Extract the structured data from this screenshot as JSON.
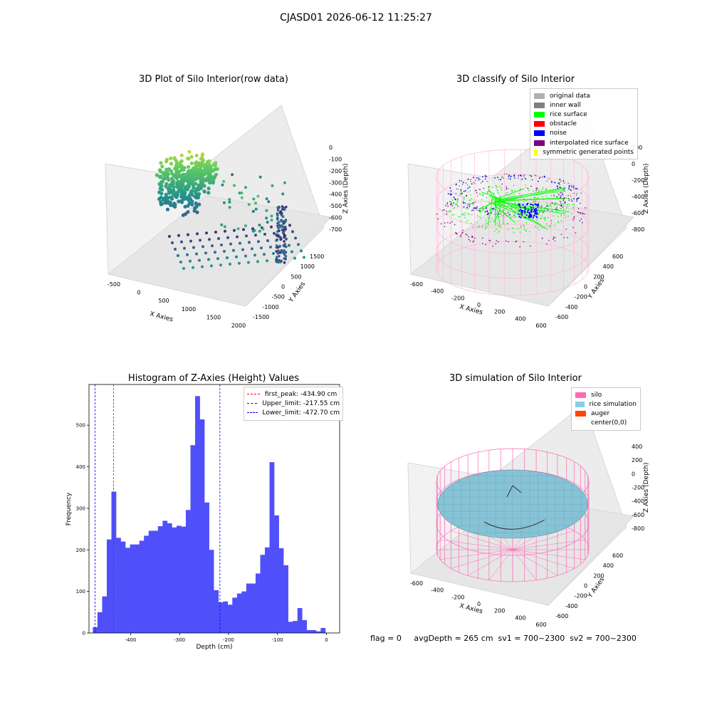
{
  "figure": {
    "suptitle": "CJASD01 2026-06-12 11:25:27",
    "footer": "flag = 0     avgDepth = 265 cm  sv1 = 700~2300  sv2 = 700~2300"
  },
  "chart_data": [
    {
      "type": "scatter",
      "projection": "3d",
      "title": "3D Plot of Silo Interior(row data)",
      "xlabel": "X Axies",
      "ylabel": "Y Axies",
      "zlabel": "Z Axies (Depth)",
      "xticks": [
        "-500",
        "0",
        "500",
        "1000",
        "1500",
        "2000"
      ],
      "yticks": [
        "-1500",
        "-1000",
        "-500",
        "0",
        "500",
        "1000",
        "1500"
      ],
      "zticks": [
        "0",
        "-100",
        "-200",
        "-300",
        "-400",
        "-500",
        "-600",
        "-700"
      ],
      "colormap": "viridis"
    },
    {
      "type": "scatter",
      "projection": "3d",
      "title": "3D classify of Silo Interior",
      "xlabel": "X Axies",
      "ylabel": "Y Axies",
      "zlabel": "Z Axies (Depth)",
      "xticks": [
        "-600",
        "-400",
        "-200",
        "0",
        "200",
        "400",
        "600"
      ],
      "yticks": [
        "-600",
        "-400",
        "-200",
        "0",
        "200",
        "400",
        "600"
      ],
      "zticks": [
        "200",
        "0",
        "-200",
        "-400",
        "-600",
        "-800"
      ],
      "legend": [
        {
          "label": "original data",
          "color": "#b0b0b0"
        },
        {
          "label": "inner wall",
          "color": "#808080"
        },
        {
          "label": "rice surface",
          "color": "#00ff00"
        },
        {
          "label": "obstacle",
          "color": "#ff0000"
        },
        {
          "label": "noise",
          "color": "#0000ff"
        },
        {
          "label": "interpolated rice surface",
          "color": "#800080"
        },
        {
          "label": "symmetric generated points",
          "color": "#ffff00"
        }
      ],
      "legend_loc": "top-right"
    },
    {
      "type": "bar",
      "title": "Histogram of Z-Axies (Height) Values",
      "xlabel": "Depth (cm)",
      "ylabel": "Frequency",
      "bar_color": "#5050fa",
      "bin_width": 9.5,
      "bin_starts": [
        -477.2,
        -467.7,
        -458.2,
        -448.7,
        -439.2,
        -429.7,
        -420.2,
        -410.7,
        -401.2,
        -391.7,
        -382.2,
        -372.7,
        -363.2,
        -353.7,
        -344.2,
        -334.7,
        -325.2,
        -315.7,
        -306.2,
        -296.7,
        -287.2,
        -277.7,
        -268.2,
        -258.7,
        -249.2,
        -239.7,
        -230.2,
        -220.7,
        -211.2,
        -201.7,
        -192.2,
        -182.7,
        -173.2,
        -163.7,
        -154.2,
        -144.7,
        -135.2,
        -125.7,
        -116.2,
        -106.7,
        -97.2,
        -87.7,
        -78.2,
        -68.7,
        -59.2,
        -49.7,
        -40.2,
        -30.7,
        -21.2,
        -11.7,
        -2.2
      ],
      "values": [
        14,
        50,
        88,
        225,
        340,
        229,
        220,
        205,
        213,
        213,
        222,
        234,
        246,
        246,
        257,
        270,
        264,
        254,
        258,
        256,
        296,
        452,
        570,
        514,
        314,
        200,
        103,
        74,
        76,
        68,
        85,
        95,
        100,
        119,
        119,
        143,
        188,
        206,
        411,
        283,
        204,
        163,
        27,
        29,
        60,
        31,
        7,
        7,
        4,
        12
      ],
      "xlim": [
        -485,
        27
      ],
      "ylim": [
        0,
        598
      ],
      "xticks": [
        -400,
        -300,
        -200,
        -100,
        0
      ],
      "yticks": [
        0,
        100,
        200,
        300,
        400,
        500
      ],
      "vlines": [
        {
          "label": "first_peak: -434.90 cm",
          "x": -434.9,
          "color": "#ff0000"
        },
        {
          "label": "Upper_limit: -217.55 cm",
          "x": -217.55,
          "color": "#0000ff"
        },
        {
          "label": "Lower_limit: -472.70 cm",
          "x": -472.7,
          "color": "#0000ff"
        }
      ],
      "legend_loc": "top-right"
    },
    {
      "type": "surface",
      "projection": "3d",
      "title": "3D simulation of Silo Interior",
      "xlabel": "X Axies",
      "ylabel": "Y Axies",
      "zlabel": "Z Axies (Depth)",
      "xticks": [
        "-600",
        "-400",
        "-200",
        "0",
        "200",
        "400",
        "600"
      ],
      "yticks": [
        "-600",
        "-400",
        "-200",
        "0",
        "200",
        "400",
        "600"
      ],
      "zticks": [
        "400",
        "200",
        "0",
        "-200",
        "-400",
        "-600",
        "-800"
      ],
      "legend": [
        {
          "label": "silo",
          "color": "#ff69b4"
        },
        {
          "label": "rice simulation",
          "color": "#87ceeb"
        },
        {
          "label": "auger",
          "color": "#ff4500"
        },
        {
          "label": "center(0,0)",
          "color": "#ffffff"
        }
      ],
      "legend_loc": "top-right"
    }
  ]
}
